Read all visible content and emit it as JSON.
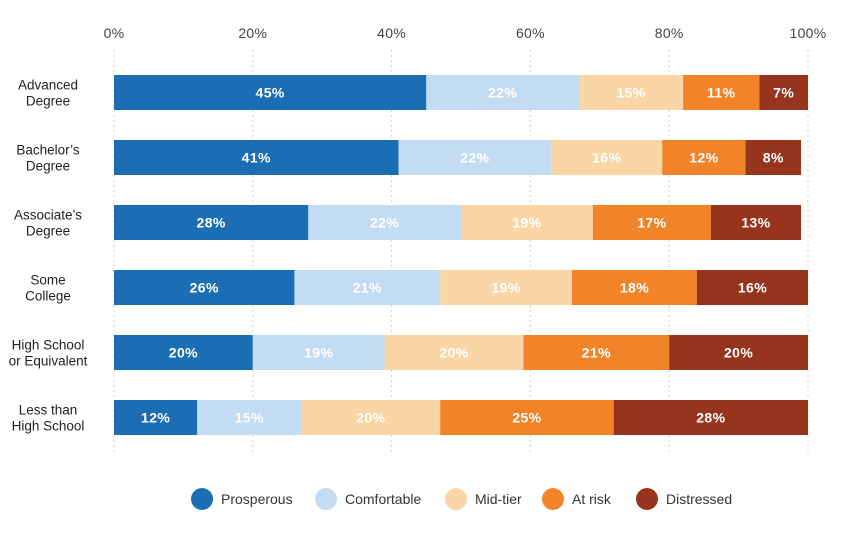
{
  "chart_data": {
    "type": "bar",
    "orientation": "horizontal",
    "stacked": true,
    "percent_stacked": true,
    "title": "",
    "xlabel": "",
    "ylabel": "",
    "xlim": [
      0,
      100
    ],
    "x_ticks": [
      0,
      20,
      40,
      60,
      80,
      100
    ],
    "x_tick_labels": [
      "0%",
      "20%",
      "40%",
      "60%",
      "80%",
      "100%"
    ],
    "x_axis_position": "top",
    "grid": true,
    "legend_position": "bottom",
    "categories": [
      [
        "Advanced",
        "Degree"
      ],
      [
        "Bachelor’s",
        "Degree"
      ],
      [
        "Associate’s",
        "Degree"
      ],
      [
        "Some",
        "College"
      ],
      [
        "High School",
        "or Equivalent"
      ],
      [
        "Less than",
        "High School"
      ]
    ],
    "series": [
      {
        "name": "Prosperous",
        "color": "#1b6db4",
        "label_color": "#ffffff",
        "values": [
          45,
          41,
          28,
          26,
          20,
          12
        ]
      },
      {
        "name": "Comfortable",
        "color": "#c3dcf1",
        "label_color": "#ffffff",
        "values": [
          22,
          22,
          22,
          21,
          19,
          15
        ]
      },
      {
        "name": "Mid-tier",
        "color": "#fad5a6",
        "label_color": "#ffffff",
        "values": [
          15,
          16,
          19,
          19,
          20,
          20
        ]
      },
      {
        "name": "At risk",
        "color": "#f18428",
        "label_color": "#ffffff",
        "values": [
          11,
          12,
          17,
          18,
          21,
          25
        ]
      },
      {
        "name": "Distressed",
        "color": "#97341e",
        "label_color": "#ffffff",
        "values": [
          7,
          8,
          13,
          16,
          20,
          28
        ]
      }
    ]
  }
}
